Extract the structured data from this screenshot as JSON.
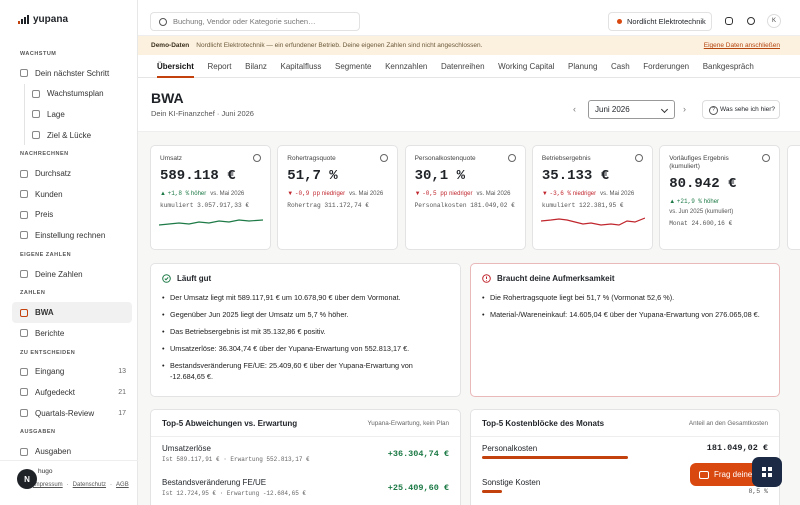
{
  "sidebar": {
    "brand": "yupana",
    "sections": [
      {
        "label": "WACHSTUM",
        "items": [
          {
            "label": "Dein nächster Schritt",
            "children": [
              {
                "label": "Wachstumsplan"
              },
              {
                "label": "Lage"
              },
              {
                "label": "Ziel & Lücke"
              }
            ]
          }
        ]
      },
      {
        "label": "NACHRECHNEN",
        "items": [
          {
            "label": "Durchsatz"
          },
          {
            "label": "Kunden"
          },
          {
            "label": "Preis"
          },
          {
            "label": "Einstellung rechnen"
          }
        ]
      },
      {
        "label": "EIGENE ZAHLEN",
        "items": [
          {
            "label": "Deine Zahlen"
          }
        ]
      },
      {
        "label": "ZAHLEN",
        "items": [
          {
            "label": "BWA"
          },
          {
            "label": "Berichte"
          }
        ]
      },
      {
        "label": "ZU ENTSCHEIDEN",
        "items": [
          {
            "label": "Eingang",
            "count": 13
          },
          {
            "label": "Aufgedeckt",
            "count": 21
          },
          {
            "label": "Quartals-Review",
            "count": 17
          }
        ]
      },
      {
        "label": "AUSGABEN",
        "items": [
          {
            "label": "Ausgaben"
          }
        ]
      }
    ],
    "active_item": "BWA",
    "avatar": "N",
    "user": "hugo",
    "footer_links": [
      "Impressum",
      "Datenschutz",
      "AGB"
    ]
  },
  "topbar": {
    "search_placeholder": "Buchung, Vendor oder Kategorie suchen…",
    "company": "Nordlicht Elektrotechnik",
    "user_initial": "K"
  },
  "banner": {
    "label": "Demo-Daten",
    "text": "Nordlicht Elektrotechnik — ein erfundener Betrieb. Deine eigenen Zahlen sind nicht angeschlossen.",
    "link": "Eigene Daten anschließen"
  },
  "tabs": [
    "Übersicht",
    "Report",
    "Bilanz",
    "Kapitalfluss",
    "Segmente",
    "Kennzahlen",
    "Datenreihen",
    "Working Capital",
    "Planung",
    "Cash",
    "Forderungen",
    "Bankgespräch"
  ],
  "active_tab": "Übersicht",
  "header": {
    "title": "BWA",
    "subtitle": "Dein KI-Finanzchef · Juni 2026",
    "period": "Juni 2026",
    "help": "Was sehe ich hier?"
  },
  "kpis": [
    {
      "label": "Umsatz",
      "value": "589.118 €",
      "direction": "up",
      "change": "+1,8 %",
      "change_text": "höher",
      "compare": "vs. Mai 2026",
      "detail": "kumuliert 3.057.917,33 €"
    },
    {
      "label": "Rohertragsquote",
      "value": "51,7 %",
      "direction": "down",
      "change": "-0,9 pp",
      "change_text": "niedriger",
      "compare": "vs. Mai 2026",
      "detail": "Rohertrag 311.172,74 €"
    },
    {
      "label": "Personalkostenquote",
      "value": "30,1 %",
      "direction": "down",
      "change": "-0,5 pp",
      "change_text": "niedriger",
      "compare": "vs. Mai 2026",
      "detail": "Personalkosten 181.049,02 €"
    },
    {
      "label": "Betriebsergebnis",
      "value": "35.133 €",
      "direction": "down",
      "change": "-3,6 %",
      "change_text": "niedriger",
      "compare": "vs. Mai 2026",
      "detail": "kumuliert 122.381,95 €"
    },
    {
      "label": "Vorläufiges Ergebnis (kumuliert)",
      "value": "80.942 €",
      "direction": "up",
      "change": "+21,9 %",
      "change_text": "höher",
      "compare": "vs. Jun 2025 (kumuliert)",
      "detail": "Monat 24.600,16 €"
    }
  ],
  "insights": {
    "good": {
      "title": "Läuft gut",
      "items": [
        "Der Umsatz liegt mit 589.117,91 € um 10.678,90 € über dem Vormonat.",
        "Gegenüber Jun 2025 liegt der Umsatz um 5,7 % höher.",
        "Das Betriebsergebnis ist mit 35.132,86 € positiv.",
        "Umsatzerlöse: 36.304,74 € über der Yupana-Erwartung von 552.813,17 €.",
        "Bestandsveränderung FE/UE: 25.409,60 € über der Yupana-Erwartung von -12.684,65 €."
      ]
    },
    "attention": {
      "title": "Braucht deine Aufmerksamkeit",
      "items": [
        "Die Rohertragsquote liegt bei 51,7 % (Vormonat 52,6 %).",
        "Material-/Wareneinkauf: 14.605,04 € über der Yupana-Erwartung von 276.065,08 €."
      ]
    }
  },
  "deviations": {
    "title": "Top-5 Abweichungen vs. Erwartung",
    "note": "Yupana-Erwartung, kein Plan",
    "rows": [
      {
        "name": "Umsatzerlöse",
        "detail": "Ist 589.117,91 € · Erwartung 552.813,17 €",
        "value": "+36.304,74 €"
      },
      {
        "name": "Bestandsveränderung FE/UE",
        "detail": "Ist 12.724,95 € · Erwartung -12.684,65 €",
        "value": "+25.409,60 €"
      }
    ]
  },
  "costs": {
    "title": "Top-5 Kostenblöcke des Monats",
    "note": "Anteil an den Gesamtkosten",
    "rows": [
      {
        "name": "Personalkosten",
        "value": "181.049,02 €"
      },
      {
        "name": "Sonstige Kosten",
        "share": "8,5 %"
      }
    ]
  },
  "assistant": {
    "label": "Frag deine"
  }
}
